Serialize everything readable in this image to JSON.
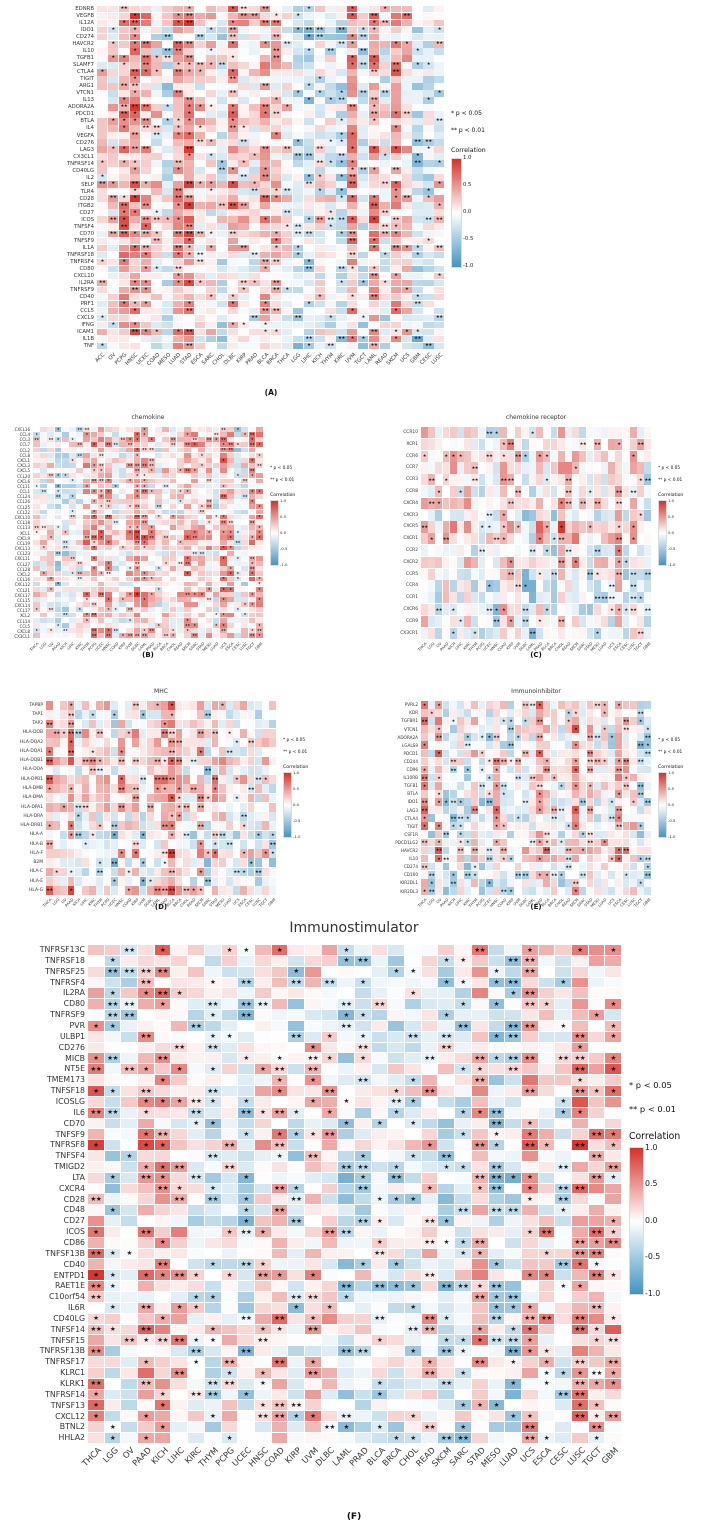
{
  "legend": {
    "p05": "* p < 0.05",
    "p01": "** p < 0.01",
    "correlation_label": "Correlation",
    "ticks": [
      "1.0",
      "0.5",
      "0.0",
      "-0.5",
      "-1.0"
    ]
  },
  "colors": {
    "positive": "#d73027",
    "negative": "#4393c3",
    "star": "#000000"
  },
  "chart_data": [
    {
      "id": "A",
      "type": "heatmap",
      "title": "",
      "caption": "(A)",
      "value_range": [
        -1,
        1
      ],
      "legend_position": "right",
      "rows": [
        "EDNRB",
        "VEGFB",
        "IL12A",
        "IDO1",
        "CD274",
        "HAVCR2",
        "IL10",
        "TGFB1",
        "SLAMF7",
        "CTLA4",
        "TIGIT",
        "ARG1",
        "VTCN1",
        "IL13",
        "ADORA2A",
        "PDCD1",
        "BTLA",
        "IL4",
        "VEGFA",
        "CD276",
        "LAG3",
        "CX3CL1",
        "TNFRSF14",
        "CD40LG",
        "IL2",
        "SELP",
        "TLR4",
        "CD28",
        "ITGB2",
        "CD27",
        "ICOS",
        "TNFSF4",
        "CD70",
        "TNFSF9",
        "IL1A",
        "TNFRSF18",
        "TNFRSF4",
        "CD80",
        "CXCL10",
        "IL2RA",
        "TNFRSF9",
        "CD40",
        "PRF1",
        "CCL5",
        "CXCL9",
        "IFNG",
        "ICAM1",
        "IL1B",
        "TNF"
      ],
      "columns": [
        "ACC",
        "OV",
        "PCPG",
        "HNSC",
        "UCEC",
        "COAD",
        "MESO",
        "LUAD",
        "STAD",
        "ESCA",
        "SARC",
        "CHOL",
        "DLBC",
        "KIRP",
        "PRAD",
        "BLCA",
        "BRCA",
        "THCA",
        "LGG",
        "LIHC",
        "KICH",
        "THYM",
        "KIRC",
        "UVM",
        "TGCT",
        "LAML",
        "READ",
        "SKCM",
        "UCS",
        "GBM",
        "CESC",
        "LUSC"
      ]
    },
    {
      "id": "B",
      "type": "heatmap",
      "title": "chemokine",
      "caption": "(B)",
      "value_range": [
        -1,
        1
      ],
      "legend_position": "right",
      "rows": [
        "CXCL16",
        "CCL4",
        "CCL3",
        "CCL7",
        "CCL2",
        "CCL8",
        "CXCL1",
        "CXCL3",
        "CXCL5",
        "CCL20",
        "CXCL6",
        "CCL11",
        "CCL1",
        "CCL24",
        "CCL26",
        "CCL25",
        "CCL22",
        "CXCL10",
        "CCL18",
        "CCL13",
        "XCL1",
        "CXCL9",
        "CCL19",
        "CXCL13",
        "CCL23",
        "CXCL11",
        "CCL27",
        "CCL28",
        "CXCL2",
        "CCL16",
        "CXCL12",
        "CCL21",
        "CXCL17",
        "CCL15",
        "CXCL14",
        "CCL17",
        "XCL2",
        "CCL14",
        "CCL5",
        "CXCL8",
        "CX3CL1"
      ],
      "columns": [
        "THCA",
        "LGG",
        "OV",
        "PAAD",
        "KICH",
        "LIHC",
        "KIRC",
        "THYM",
        "PCPG",
        "UCEC",
        "HNSC",
        "COAD",
        "KIRP",
        "UVM",
        "DLBC",
        "LAML",
        "PRAD",
        "BLCA",
        "BRCA",
        "CHOL",
        "READ",
        "SKCM",
        "SARC",
        "STAD",
        "MESO",
        "LUAD",
        "UCS",
        "ESCA",
        "CESC",
        "LUSC",
        "TGCT",
        "GBM"
      ]
    },
    {
      "id": "C",
      "type": "heatmap",
      "title": "chemokine receptor",
      "caption": "(C)",
      "value_range": [
        -1,
        1
      ],
      "legend_position": "right",
      "rows": [
        "CCR10",
        "XCR1",
        "CCR6",
        "CCR7",
        "CCR3",
        "CCR8",
        "CXCR4",
        "CXCR3",
        "CXCR5",
        "CXCR1",
        "CCR2",
        "CXCR2",
        "CCR5",
        "CCR4",
        "CCR1",
        "CXCR6",
        "CCR9",
        "CX3CR1"
      ],
      "columns": [
        "THCA",
        "LGG",
        "OV",
        "PAAD",
        "KICH",
        "LIHC",
        "KIRC",
        "THYM",
        "PCPG",
        "UCEC",
        "HNSC",
        "COAD",
        "KIRP",
        "UVM",
        "DLBC",
        "LAML",
        "PRAD",
        "BLCA",
        "BRCA",
        "CHOL",
        "READ",
        "SKCM",
        "SARC",
        "STAD",
        "MESO",
        "LUAD",
        "UCS",
        "ESCA",
        "CESC",
        "LUSC",
        "TGCT",
        "GBM"
      ]
    },
    {
      "id": "D",
      "type": "heatmap",
      "title": "MHC",
      "caption": "(D)",
      "value_range": [
        -1,
        1
      ],
      "legend_position": "right",
      "rows": [
        "TAPBP",
        "TAP1",
        "TAP2",
        "HLA-DOB",
        "HLA-DQA2",
        "HLA-DQA1",
        "HLA-DQB1",
        "HLA-DOA",
        "HLA-DPB1",
        "HLA-DMB",
        "HLA-DMA",
        "HLA-DPA1",
        "HLA-DRA",
        "HLA-DRB1",
        "HLA-A",
        "HLA-B",
        "HLA-F",
        "B2M",
        "HLA-C",
        "HLA-E",
        "HLA-G"
      ],
      "columns": [
        "THCA",
        "LGG",
        "OV",
        "PAAD",
        "KICH",
        "LIHC",
        "KIRC",
        "THYM",
        "PCPG",
        "UCEC",
        "HNSC",
        "COAD",
        "KIRP",
        "UVM",
        "DLBC",
        "LAML",
        "PRAD",
        "BLCA",
        "BRCA",
        "CHOL",
        "READ",
        "SKCM",
        "SARC",
        "STAD",
        "MESO",
        "LUAD",
        "UCS",
        "ESCA",
        "CESC",
        "LUSC",
        "TGCT",
        "GBM"
      ]
    },
    {
      "id": "E",
      "type": "heatmap",
      "title": "Immunoinhibitor",
      "caption": "(E)",
      "value_range": [
        -1,
        1
      ],
      "legend_position": "right",
      "rows": [
        "PVRL2",
        "KDR",
        "TGFBR1",
        "VTCN1",
        "ADORA2A",
        "LGALS9",
        "PDCD1",
        "CD244",
        "CD96",
        "IL10RB",
        "TGFB1",
        "BTLA",
        "IDO1",
        "LAG3",
        "CTLA4",
        "TIGIT",
        "CSF1R",
        "PDCD1LG2",
        "HAVCR2",
        "IL10",
        "CD274",
        "CD160",
        "KIR2DL1",
        "KIR2DL3"
      ],
      "columns": [
        "THCA",
        "LGG",
        "OV",
        "PAAD",
        "KICH",
        "LIHC",
        "KIRC",
        "THYM",
        "PCPG",
        "UCEC",
        "HNSC",
        "COAD",
        "KIRP",
        "UVM",
        "DLBC",
        "LAML",
        "PRAD",
        "BLCA",
        "BRCA",
        "CHOL",
        "READ",
        "SKCM",
        "SARC",
        "STAD",
        "MESO",
        "LUAD",
        "UCS",
        "ESCA",
        "CESC",
        "LUSC",
        "TGCT",
        "GBM"
      ]
    },
    {
      "id": "F",
      "type": "heatmap",
      "title": "Immunostimulator",
      "caption": "(F)",
      "value_range": [
        -1,
        1
      ],
      "legend_position": "right",
      "rows": [
        "TNFRSF13C",
        "TNFRSF18",
        "TNFRSF25",
        "TNFRSF4",
        "IL2RA",
        "CD80",
        "TNFRSF9",
        "PVR",
        "ULBP1",
        "CD276",
        "MICB",
        "NT5E",
        "TMEM173",
        "TNFSF18",
        "ICOSLG",
        "IL6",
        "CD70",
        "TNFSF9",
        "TNFRSF8",
        "TNFSF4",
        "TMIGD2",
        "LTA",
        "CXCR4",
        "CD28",
        "CD48",
        "CD27",
        "ICOS",
        "CD86",
        "TNFSF13B",
        "CD40",
        "ENTPD1",
        "RAET1E",
        "C10orf54",
        "IL6R",
        "CD40LG",
        "TNFSF14",
        "TNFSF15",
        "TNFRSF13B",
        "TNFRSF17",
        "KLRC1",
        "KLRK1",
        "TNFRSF14",
        "TNFSF13",
        "CXCL12",
        "BTNL2",
        "HHLA2"
      ],
      "columns": [
        "THCA",
        "LGG",
        "OV",
        "PAAD",
        "KICH",
        "LIHC",
        "KIRC",
        "THYM",
        "PCPG",
        "UCEC",
        "HNSC",
        "COAD",
        "KIRP",
        "UVM",
        "DLBC",
        "LAML",
        "PRAD",
        "BLCA",
        "BRCA",
        "CHOL",
        "READ",
        "SKCM",
        "SARC",
        "STAD",
        "MESO",
        "LUAD",
        "UCS",
        "ESCA",
        "CESC",
        "LUSC",
        "TGCT",
        "GBM"
      ]
    }
  ]
}
